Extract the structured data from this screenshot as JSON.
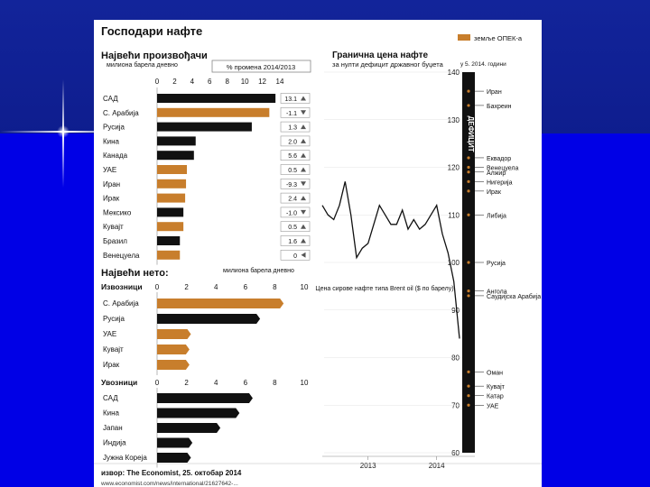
{
  "title": "Господари нафте",
  "legend_label": "земље ОПЕК-а",
  "colors": {
    "opec": "#c87e2c",
    "other": "#111111",
    "panel": "#ffffff",
    "background": "#0b1a8c"
  },
  "source": "извор: The Economist, 25. октобар 2014",
  "source_url": "www.economist.com/news/international/21627642-...",
  "chart_data": [
    {
      "type": "bar",
      "title": "Највећи произвођачи",
      "subtitle": "милиона барела дневно",
      "change_header": "% промена 2014/2013",
      "xlim": [
        0,
        14
      ],
      "ticks": [
        0,
        2,
        4,
        6,
        8,
        10,
        12,
        14
      ],
      "categories": [
        "САД",
        "С. Арабија",
        "Русија",
        "Кина",
        "Канада",
        "УАЕ",
        "Иран",
        "Ирак",
        "Мексико",
        "Кувајт",
        "Бразил",
        "Венецуела"
      ],
      "values": [
        13.5,
        12.8,
        10.8,
        4.4,
        4.2,
        3.4,
        3.3,
        3.2,
        3.0,
        3.0,
        2.6,
        2.6
      ],
      "opec": [
        false,
        true,
        false,
        false,
        false,
        true,
        true,
        true,
        false,
        true,
        false,
        true
      ],
      "changes": [
        "13.1",
        "-1.1",
        "1.3",
        "2.0",
        "5.6",
        "0.5",
        "-9.3",
        "2.4",
        "-1.0",
        "0.5",
        "1.6",
        "0"
      ],
      "change_dir": [
        "up",
        "down",
        "up",
        "up",
        "up",
        "up",
        "down",
        "up",
        "down",
        "up",
        "up",
        "flat"
      ]
    },
    {
      "type": "bar",
      "title": "Највећи нето:",
      "unit_label": "милиона барела дневно",
      "group_label": "Извозници",
      "xlim": [
        0,
        10
      ],
      "ticks": [
        0,
        2,
        4,
        6,
        8,
        10
      ],
      "categories": [
        "С. Арабија",
        "Русија",
        "УАЕ",
        "Кувајт",
        "Ирак"
      ],
      "values": [
        8.6,
        7.0,
        2.3,
        2.2,
        2.2
      ],
      "opec": [
        true,
        false,
        true,
        true,
        true
      ]
    },
    {
      "type": "bar",
      "group_label": "Увозници",
      "xlim": [
        0,
        10
      ],
      "ticks": [
        0,
        2,
        4,
        6,
        8,
        10
      ],
      "categories": [
        "САД",
        "Кина",
        "Јапан",
        "Индија",
        "Јужна Кореја"
      ],
      "values": [
        6.5,
        5.6,
        4.3,
        2.4,
        2.3
      ],
      "opec": [
        false,
        false,
        false,
        false,
        false
      ]
    },
    {
      "type": "line",
      "title": "Гранична цена нафте",
      "subtitle": "за нулти дефицит државног буџета",
      "date_note": "у 5. 2014. години",
      "series_label": "Цена сирове нафте типа Brent oil ($ по барелу)",
      "axis_label": "ДЕФИЦИТ",
      "ylim": [
        60,
        140
      ],
      "yticks": [
        60,
        70,
        80,
        90,
        100,
        110,
        120,
        130,
        140
      ],
      "xticks": [
        "2013",
        "2014"
      ],
      "x": [
        "2012-10",
        "2012-11",
        "2012-12",
        "2013-01",
        "2013-02",
        "2013-03",
        "2013-04",
        "2013-05",
        "2013-06",
        "2013-07",
        "2013-08",
        "2013-09",
        "2013-10",
        "2013-11",
        "2013-12",
        "2014-01",
        "2014-02",
        "2014-03",
        "2014-04",
        "2014-05",
        "2014-06",
        "2014-07",
        "2014-08",
        "2014-09",
        "2014-10"
      ],
      "values": [
        112,
        110,
        109,
        112,
        117,
        110,
        101,
        103,
        104,
        108,
        112,
        110,
        108,
        108,
        111,
        107,
        109,
        107,
        108,
        110,
        112,
        106,
        102,
        96,
        84
      ],
      "breakeven": [
        {
          "country": "Иран",
          "value": 136
        },
        {
          "country": "Бахреин",
          "value": 133
        },
        {
          "country": "Еквадор",
          "value": 122
        },
        {
          "country": "Венецуела",
          "value": 120
        },
        {
          "country": "Алжир",
          "value": 119
        },
        {
          "country": "Нигерија",
          "value": 117
        },
        {
          "country": "Ирак",
          "value": 115
        },
        {
          "country": "Либија",
          "value": 110
        },
        {
          "country": "Русија",
          "value": 100
        },
        {
          "country": "Ангола",
          "value": 94
        },
        {
          "country": "Саудијска Арабија",
          "value": 93
        },
        {
          "country": "Оман",
          "value": 77
        },
        {
          "country": "Кувајт",
          "value": 74
        },
        {
          "country": "Катар",
          "value": 72
        },
        {
          "country": "УАЕ",
          "value": 70
        }
      ]
    }
  ]
}
